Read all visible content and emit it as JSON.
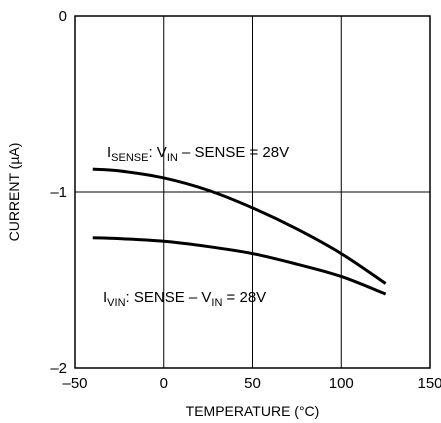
{
  "chart_data": {
    "type": "line",
    "title": "",
    "xlabel": "TEMPERATURE (°C)",
    "ylabel": "CURRENT (µA)",
    "xlim": [
      -50,
      150
    ],
    "ylim": [
      -2,
      0
    ],
    "x_ticks": [
      "–50",
      "0",
      "50",
      "100",
      "150"
    ],
    "y_ticks": [
      "0",
      "–1",
      "–2"
    ],
    "grid": true,
    "series": [
      {
        "x": [
          -40,
          -25,
          0,
          25,
          50,
          75,
          100,
          125
        ],
        "values": [
          -0.87,
          -0.88,
          -0.92,
          -0.99,
          -1.09,
          -1.21,
          -1.35,
          -1.52
        ]
      },
      {
        "x": [
          -40,
          -25,
          0,
          25,
          50,
          75,
          100,
          125
        ],
        "values": [
          -1.26,
          -1.265,
          -1.28,
          -1.31,
          -1.35,
          -1.41,
          -1.48,
          -1.58
        ]
      }
    ],
    "annotations": [
      {
        "parts": [
          {
            "text": "I",
            "sub": false
          },
          {
            "text": "SENSE",
            "sub": true
          },
          {
            "text": ": V",
            "sub": false
          },
          {
            "text": "IN",
            "sub": true
          },
          {
            "text": " – SENSE = 28V",
            "sub": false
          }
        ]
      },
      {
        "parts": [
          {
            "text": "I",
            "sub": false
          },
          {
            "text": "VIN",
            "sub": true
          },
          {
            "text": ": SENSE – V",
            "sub": false
          },
          {
            "text": "IN",
            "sub": true
          },
          {
            "text": " = 28V",
            "sub": false
          }
        ]
      }
    ],
    "colors": {
      "line": "#000000",
      "grid": "#000000",
      "background": "#ffffff"
    }
  }
}
